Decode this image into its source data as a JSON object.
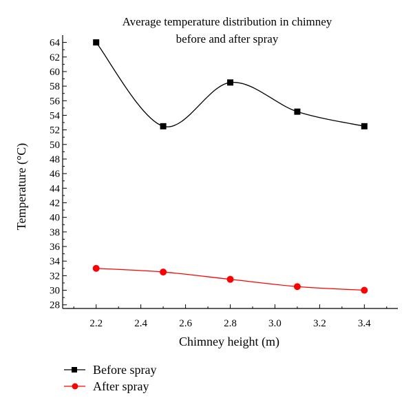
{
  "chart_data": {
    "type": "line",
    "title": [
      "Average temperature distribution in chimney",
      "before and after spray"
    ],
    "xlabel": "Chimney height (m)",
    "ylabel": "Temperature (°C)",
    "x": [
      2.2,
      2.5,
      2.8,
      3.1,
      3.4
    ],
    "xlim": [
      2.05,
      3.55
    ],
    "ylim": [
      27.5,
      65
    ],
    "x_ticks": [
      "2.2",
      "2.4",
      "2.6",
      "2.8",
      "3.0",
      "3.2",
      "3.4"
    ],
    "y_ticks": [
      "28",
      "30",
      "32",
      "34",
      "36",
      "38",
      "40",
      "42",
      "44",
      "46",
      "48",
      "50",
      "52",
      "54",
      "56",
      "58",
      "60",
      "62",
      "64"
    ],
    "grid": false,
    "legend_position": "bottom-left, below plot",
    "series": [
      {
        "name": "Before spray",
        "values": [
          64,
          52.5,
          58.5,
          54.5,
          52.5
        ],
        "color": "#000000",
        "marker": "square"
      },
      {
        "name": "After spray",
        "values": [
          33,
          32.5,
          31.5,
          30.5,
          30
        ],
        "color": "#ff0000",
        "marker": "circle"
      }
    ]
  }
}
